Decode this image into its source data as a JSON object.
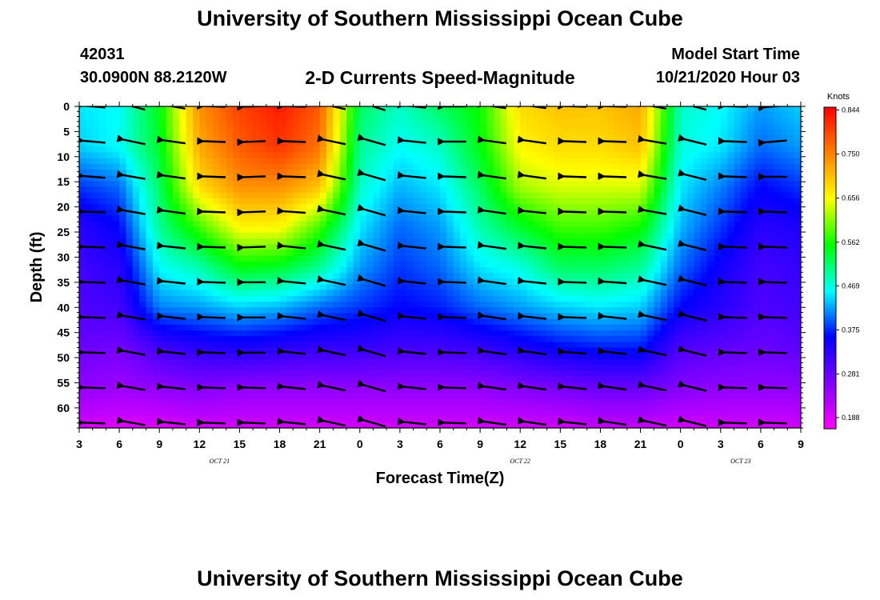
{
  "header": {
    "title": "University of Southern Mississippi Ocean Cube",
    "station_id": "42031",
    "station_coords": "30.0900N 88.2120W",
    "chart_title": "2-D Currents Speed-Magnitude",
    "model_start_label": "Model Start Time",
    "model_start_time": "10/21/2020 Hour 03"
  },
  "footer": {
    "title": "University of Southern Mississippi Ocean Cube"
  },
  "chart_data": {
    "type": "heatmap",
    "title": "2-D Currents Speed-Magnitude",
    "xlabel": "Forecast Time(Z)",
    "ylabel": "Depth (ft)",
    "x_range_hours": [
      3,
      57
    ],
    "y_range_ft": [
      0,
      64
    ],
    "x_ticks": [
      {
        "hour": 3,
        "label": "3"
      },
      {
        "hour": 6,
        "label": "6"
      },
      {
        "hour": 9,
        "label": "9"
      },
      {
        "hour": 12,
        "label": "12"
      },
      {
        "hour": 15,
        "label": "15"
      },
      {
        "hour": 18,
        "label": "18"
      },
      {
        "hour": 21,
        "label": "21"
      },
      {
        "hour": 24,
        "label": "0"
      },
      {
        "hour": 27,
        "label": "3"
      },
      {
        "hour": 30,
        "label": "6"
      },
      {
        "hour": 33,
        "label": "9"
      },
      {
        "hour": 36,
        "label": "12"
      },
      {
        "hour": 39,
        "label": "15"
      },
      {
        "hour": 42,
        "label": "18"
      },
      {
        "hour": 45,
        "label": "21"
      },
      {
        "hour": 48,
        "label": "0"
      },
      {
        "hour": 51,
        "label": "3"
      },
      {
        "hour": 54,
        "label": "6"
      },
      {
        "hour": 57,
        "label": "9"
      }
    ],
    "date_labels": [
      {
        "hour": 13.5,
        "label": "OCT 21"
      },
      {
        "hour": 36,
        "label": "OCT 22"
      },
      {
        "hour": 52.5,
        "label": "OCT 23"
      }
    ],
    "y_ticks": [
      0,
      5,
      10,
      15,
      20,
      25,
      30,
      35,
      40,
      45,
      50,
      55,
      60
    ],
    "colorbar": {
      "unit": "Knots",
      "min": 0.164,
      "max": 0.85,
      "ticks": [
        "0.844",
        "0.750",
        "0.656",
        "0.562",
        "0.469",
        "0.375",
        "0.281",
        "0.188"
      ],
      "colors": [
        "#ff00ff",
        "#8000ff",
        "#0000ff",
        "#00ffff",
        "#00ff00",
        "#ffff00",
        "#ff8000",
        "#ff0000"
      ]
    },
    "speed_grid": {
      "hours": [
        3,
        6,
        9,
        12,
        15,
        18,
        21,
        24,
        27,
        30,
        33,
        36,
        39,
        42,
        45,
        48,
        51,
        54,
        57
      ],
      "depths_ft": [
        0,
        8,
        16,
        24,
        32,
        40,
        48,
        56,
        64
      ],
      "knots": [
        [
          0.45,
          0.46,
          0.55,
          0.74,
          0.8,
          0.83,
          0.78,
          0.52,
          0.48,
          0.52,
          0.56,
          0.68,
          0.7,
          0.7,
          0.72,
          0.48,
          0.46,
          0.42,
          0.44
        ],
        [
          0.44,
          0.46,
          0.54,
          0.72,
          0.78,
          0.81,
          0.76,
          0.5,
          0.46,
          0.48,
          0.55,
          0.66,
          0.68,
          0.68,
          0.7,
          0.47,
          0.45,
          0.4,
          0.42
        ],
        [
          0.38,
          0.4,
          0.52,
          0.68,
          0.74,
          0.74,
          0.7,
          0.48,
          0.43,
          0.45,
          0.52,
          0.62,
          0.64,
          0.64,
          0.64,
          0.45,
          0.41,
          0.36,
          0.38
        ],
        [
          0.33,
          0.36,
          0.5,
          0.58,
          0.66,
          0.66,
          0.58,
          0.45,
          0.4,
          0.42,
          0.49,
          0.54,
          0.58,
          0.58,
          0.56,
          0.43,
          0.38,
          0.33,
          0.34
        ],
        [
          0.31,
          0.33,
          0.46,
          0.49,
          0.55,
          0.54,
          0.5,
          0.42,
          0.38,
          0.4,
          0.45,
          0.47,
          0.52,
          0.52,
          0.5,
          0.4,
          0.35,
          0.31,
          0.32
        ],
        [
          0.3,
          0.31,
          0.41,
          0.42,
          0.44,
          0.43,
          0.4,
          0.38,
          0.36,
          0.37,
          0.4,
          0.42,
          0.44,
          0.45,
          0.44,
          0.36,
          0.33,
          0.3,
          0.31
        ],
        [
          0.28,
          0.27,
          0.31,
          0.33,
          0.34,
          0.33,
          0.32,
          0.32,
          0.31,
          0.31,
          0.32,
          0.34,
          0.36,
          0.37,
          0.37,
          0.3,
          0.29,
          0.28,
          0.29
        ],
        [
          0.25,
          0.24,
          0.25,
          0.26,
          0.25,
          0.25,
          0.25,
          0.25,
          0.25,
          0.25,
          0.25,
          0.26,
          0.27,
          0.28,
          0.28,
          0.26,
          0.25,
          0.25,
          0.25
        ],
        [
          0.2,
          0.19,
          0.19,
          0.2,
          0.2,
          0.2,
          0.2,
          0.2,
          0.2,
          0.2,
          0.2,
          0.2,
          0.2,
          0.21,
          0.21,
          0.2,
          0.2,
          0.2,
          0.2
        ]
      ]
    },
    "vectors": {
      "hours": [
        4,
        7,
        10,
        13,
        16,
        19,
        22,
        25,
        28,
        31,
        34,
        37,
        40,
        43,
        46,
        49,
        52,
        55
      ],
      "depths_ft": [
        0,
        7,
        14,
        21,
        28,
        35,
        42,
        49,
        56,
        63
      ],
      "bearing_deg": [
        [
          275,
          285,
          280,
          272,
          268,
          272,
          283,
          288,
          276,
          270,
          278,
          278,
          272,
          272,
          280,
          285,
          272,
          265
        ],
        [
          275,
          282,
          278,
          272,
          268,
          272,
          282,
          286,
          276,
          270,
          278,
          278,
          272,
          272,
          280,
          284,
          272,
          265
        ],
        [
          275,
          280,
          278,
          272,
          268,
          272,
          282,
          286,
          276,
          272,
          278,
          278,
          272,
          272,
          280,
          284,
          272,
          270
        ],
        [
          272,
          280,
          278,
          272,
          268,
          274,
          282,
          286,
          276,
          272,
          278,
          276,
          272,
          272,
          280,
          284,
          272,
          272
        ],
        [
          272,
          280,
          276,
          272,
          268,
          276,
          282,
          286,
          276,
          272,
          278,
          276,
          272,
          272,
          282,
          284,
          272,
          272
        ],
        [
          272,
          280,
          276,
          272,
          270,
          276,
          282,
          286,
          276,
          272,
          278,
          276,
          272,
          274,
          282,
          284,
          272,
          272
        ],
        [
          272,
          280,
          276,
          272,
          270,
          276,
          282,
          286,
          276,
          272,
          278,
          276,
          272,
          276,
          282,
          284,
          272,
          272
        ],
        [
          272,
          280,
          276,
          272,
          270,
          276,
          282,
          286,
          276,
          272,
          278,
          278,
          274,
          276,
          282,
          284,
          272,
          272
        ],
        [
          272,
          280,
          276,
          272,
          272,
          276,
          282,
          286,
          276,
          272,
          278,
          278,
          276,
          278,
          282,
          284,
          272,
          272
        ],
        [
          272,
          280,
          276,
          272,
          272,
          276,
          282,
          286,
          276,
          272,
          278,
          278,
          276,
          278,
          282,
          284,
          272,
          272
        ]
      ]
    }
  }
}
